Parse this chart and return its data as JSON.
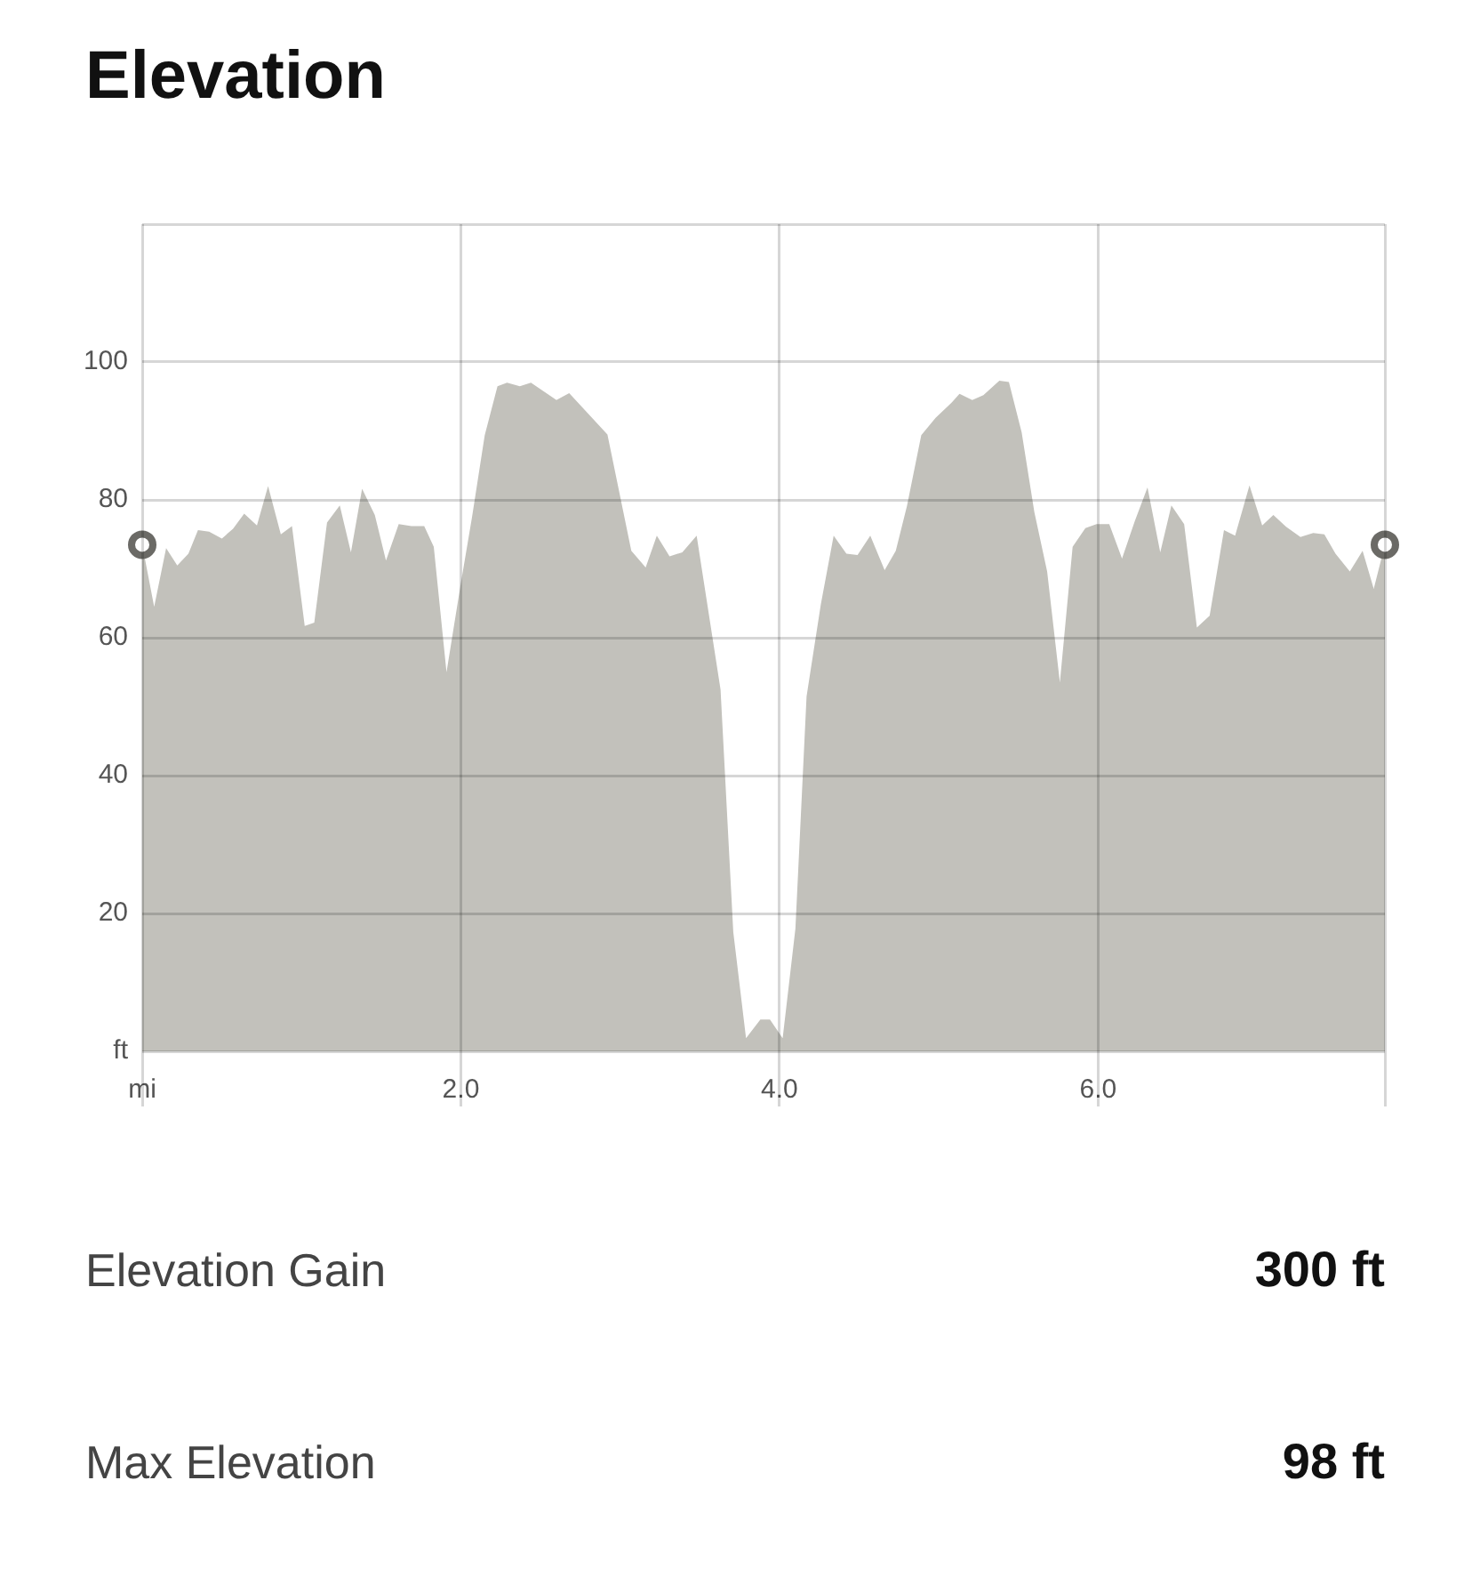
{
  "chart_data": {
    "type": "area",
    "title": "Elevation",
    "xlim": [
      0,
      7.8
    ],
    "ylim": [
      0,
      120
    ],
    "xticks": [
      {
        "value": 0,
        "label": "mi"
      },
      {
        "value": 2,
        "label": "2.0"
      },
      {
        "value": 4,
        "label": "4.0"
      },
      {
        "value": 6,
        "label": "6.0"
      },
      {
        "value": 7.8,
        "label": null
      }
    ],
    "yticks": [
      {
        "value": 0,
        "label": "ft"
      },
      20,
      40,
      60,
      80,
      100,
      {
        "value": 120,
        "label": null
      }
    ],
    "grid": true,
    "series": [
      {
        "type": "area",
        "color": "#c2c1bb",
        "marker": "none",
        "x": [
          0,
          0.075,
          0.15,
          0.22,
          0.29,
          0.35,
          0.42,
          0.5,
          0.57,
          0.64,
          0.72,
          0.79,
          0.87,
          0.94,
          1.02,
          1.08,
          1.16,
          1.24,
          1.31,
          1.38,
          1.46,
          1.53,
          1.61,
          1.69,
          1.77,
          1.83,
          1.91,
          2.0,
          2.07,
          2.15,
          2.23,
          2.29,
          2.37,
          2.44,
          2.6,
          2.68,
          2.92,
          3.07,
          3.16,
          3.23,
          3.31,
          3.39,
          3.48,
          3.63,
          3.71,
          3.79,
          3.88,
          3.94,
          4.02,
          4.1,
          4.17,
          4.26,
          4.34,
          4.42,
          4.49,
          4.57,
          4.66,
          4.73,
          4.8,
          4.89,
          4.98,
          5.08,
          5.13,
          5.21,
          5.28,
          5.38,
          5.44,
          5.52,
          5.6,
          5.68,
          5.76,
          5.84,
          5.92,
          5.99,
          6.07,
          6.15,
          6.23,
          6.31,
          6.39,
          6.46,
          6.54,
          6.62,
          6.7,
          6.79,
          6.86,
          6.95,
          7.03,
          7.1,
          7.18,
          7.27,
          7.35,
          7.42,
          7.49,
          7.58,
          7.66,
          7.73,
          7.8
        ],
        "values": [
          73.5,
          64.5,
          73,
          70.5,
          72.2,
          75.6,
          75.4,
          74.4,
          75.8,
          78,
          76.3,
          82,
          75,
          76.2,
          61.7,
          62.2,
          76.7,
          79.2,
          72.4,
          81.6,
          77.8,
          71.2,
          76.5,
          76.2,
          76.2,
          73.2,
          55,
          67.9,
          77.5,
          89.4,
          96.5,
          97,
          96.5,
          97,
          94.5,
          95.5,
          89.5,
          72.6,
          70.2,
          74.8,
          71.8,
          72.4,
          74.8,
          52.5,
          17.3,
          1.9,
          4.6,
          4.6,
          1.9,
          17.8,
          51.5,
          64.9,
          74.8,
          72.2,
          72,
          74.8,
          69.8,
          72.6,
          79.1,
          89.4,
          91.9,
          94.1,
          95.4,
          94.5,
          95.2,
          97.3,
          97.1,
          89.8,
          78.2,
          69.6,
          53.5,
          73.2,
          75.9,
          76.5,
          76.5,
          71.5,
          76.9,
          81.8,
          72.4,
          79.2,
          76.5,
          61.5,
          63.2,
          75.6,
          74.8,
          82.1,
          76.3,
          77.8,
          76.1,
          74.6,
          75.2,
          75,
          72.2,
          69.6,
          72.6,
          67.1,
          73.5
        ]
      },
      {
        "type": "scatter",
        "color": "#6b6a66",
        "marker": "circle",
        "x": [
          0,
          7.8
        ],
        "values": [
          73.5,
          73.5
        ]
      }
    ],
    "annotations": [
      "Elevation Gain",
      "300 ft",
      "Max Elevation",
      "98 ft"
    ]
  }
}
